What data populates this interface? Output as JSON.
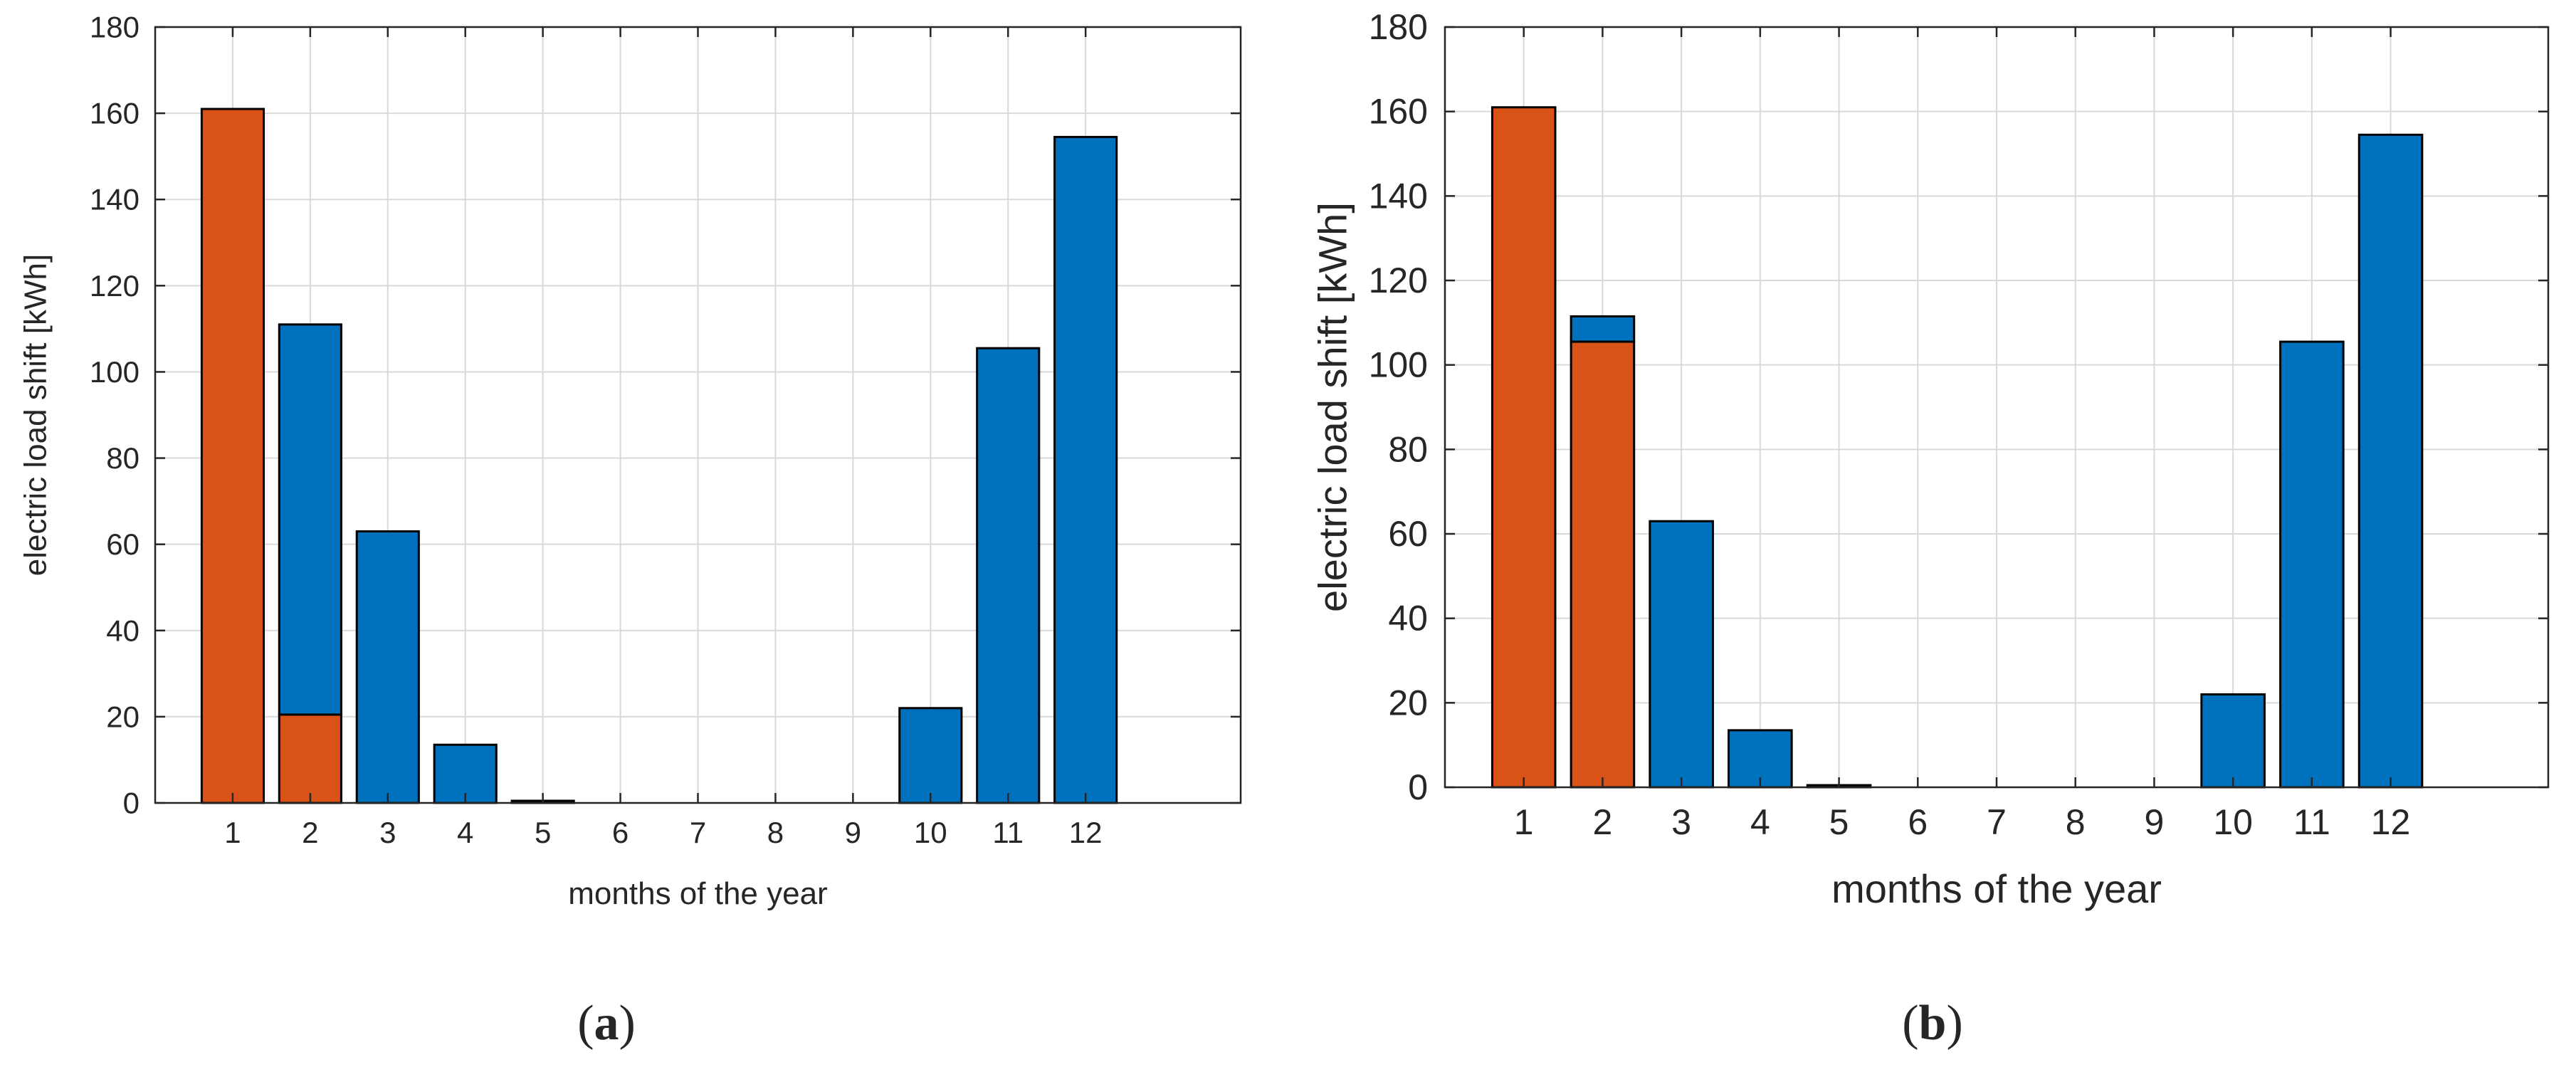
{
  "figure": {
    "captions": [
      {
        "open": "(",
        "letter": "a",
        "close": ")"
      },
      {
        "open": "(",
        "letter": "b",
        "close": ")"
      }
    ]
  },
  "chart_data": [
    {
      "type": "bar",
      "stacked": true,
      "panel": "a",
      "categories": [
        "1",
        "2",
        "3",
        "4",
        "5",
        "6",
        "7",
        "8",
        "9",
        "10",
        "11",
        "12"
      ],
      "series": [
        {
          "name": "orange",
          "color": "#D95319",
          "values": [
            161,
            20.5,
            0,
            0,
            0,
            0,
            0,
            0,
            0,
            0,
            0,
            0
          ]
        },
        {
          "name": "blue",
          "color": "#0072BD",
          "values": [
            0,
            90.5,
            63,
            13.5,
            0.5,
            0,
            0,
            0,
            0,
            22,
            105.5,
            154.5
          ]
        }
      ],
      "xlabel": "months of the year",
      "ylabel": "electric load shift [kWh]",
      "ylim": [
        0,
        180
      ],
      "yticks": [
        "0",
        "20",
        "40",
        "60",
        "80",
        "100",
        "120",
        "140",
        "160",
        "180"
      ],
      "grid": true
    },
    {
      "type": "bar",
      "stacked": true,
      "panel": "b",
      "categories": [
        "1",
        "2",
        "3",
        "4",
        "5",
        "6",
        "7",
        "8",
        "9",
        "10",
        "11",
        "12"
      ],
      "series": [
        {
          "name": "orange",
          "color": "#D95319",
          "values": [
            161,
            105.5,
            0,
            0,
            0,
            0,
            0,
            0,
            0,
            0,
            0,
            0
          ]
        },
        {
          "name": "blue",
          "color": "#0072BD",
          "values": [
            0,
            6,
            63,
            13.5,
            0.5,
            0,
            0,
            0,
            0,
            22,
            105.5,
            154.5
          ]
        }
      ],
      "xlabel": "months of the year",
      "ylabel": "electric load shift [kWh]",
      "ylim": [
        0,
        180
      ],
      "yticks": [
        "0",
        "20",
        "40",
        "60",
        "80",
        "100",
        "120",
        "140",
        "160",
        "180"
      ],
      "grid": true
    }
  ]
}
